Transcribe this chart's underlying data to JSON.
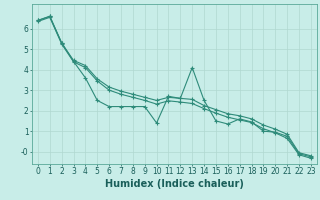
{
  "title": "",
  "xlabel": "Humidex (Indice chaleur)",
  "bg_color": "#c8ede8",
  "grid_color": "#b0d8d0",
  "line_color": "#2e8b7a",
  "xlim": [
    -0.5,
    23.5
  ],
  "ylim": [
    -0.6,
    7.2
  ],
  "yticks": [
    0,
    1,
    2,
    3,
    4,
    5,
    6
  ],
  "ytick_labels": [
    "-0",
    "1",
    "2",
    "3",
    "4",
    "5",
    "6"
  ],
  "xticks": [
    0,
    1,
    2,
    3,
    4,
    5,
    6,
    7,
    8,
    9,
    10,
    11,
    12,
    13,
    14,
    15,
    16,
    17,
    18,
    19,
    20,
    21,
    22,
    23
  ],
  "lines": [
    {
      "x": [
        0,
        1,
        2,
        3,
        4,
        5,
        6,
        7,
        8,
        9,
        10,
        11,
        12,
        13,
        14,
        15,
        16,
        17,
        18,
        19,
        20,
        21,
        22,
        23
      ],
      "y": [
        6.4,
        6.6,
        5.3,
        4.4,
        3.6,
        2.5,
        2.2,
        2.2,
        2.2,
        2.2,
        1.4,
        2.7,
        2.6,
        4.1,
        2.5,
        1.5,
        1.35,
        1.6,
        1.45,
        1.0,
        0.95,
        0.75,
        -0.1,
        -0.25
      ]
    },
    {
      "x": [
        0,
        1,
        2,
        3,
        4,
        5,
        6,
        7,
        8,
        9,
        10,
        11,
        12,
        13,
        14,
        15,
        16,
        17,
        18,
        19,
        20,
        21,
        22,
        23
      ],
      "y": [
        6.4,
        6.6,
        5.3,
        4.45,
        4.2,
        3.55,
        3.15,
        2.95,
        2.8,
        2.65,
        2.5,
        2.65,
        2.6,
        2.55,
        2.25,
        2.05,
        1.85,
        1.75,
        1.6,
        1.3,
        1.1,
        0.85,
        -0.05,
        -0.2
      ]
    },
    {
      "x": [
        0,
        1,
        2,
        3,
        4,
        5,
        6,
        7,
        8,
        9,
        10,
        11,
        12,
        13,
        14,
        15,
        16,
        17,
        18,
        19,
        20,
        21,
        22,
        23
      ],
      "y": [
        6.35,
        6.55,
        5.25,
        4.38,
        4.1,
        3.45,
        3.0,
        2.8,
        2.65,
        2.5,
        2.32,
        2.48,
        2.42,
        2.35,
        2.1,
        1.88,
        1.68,
        1.55,
        1.42,
        1.12,
        0.92,
        0.65,
        -0.15,
        -0.32
      ]
    }
  ],
  "marker": "+",
  "marker_size": 3,
  "line_width": 0.8,
  "xlabel_fontsize": 7,
  "tick_fontsize": 5.5,
  "fig_bg_color": "#c8ede8"
}
